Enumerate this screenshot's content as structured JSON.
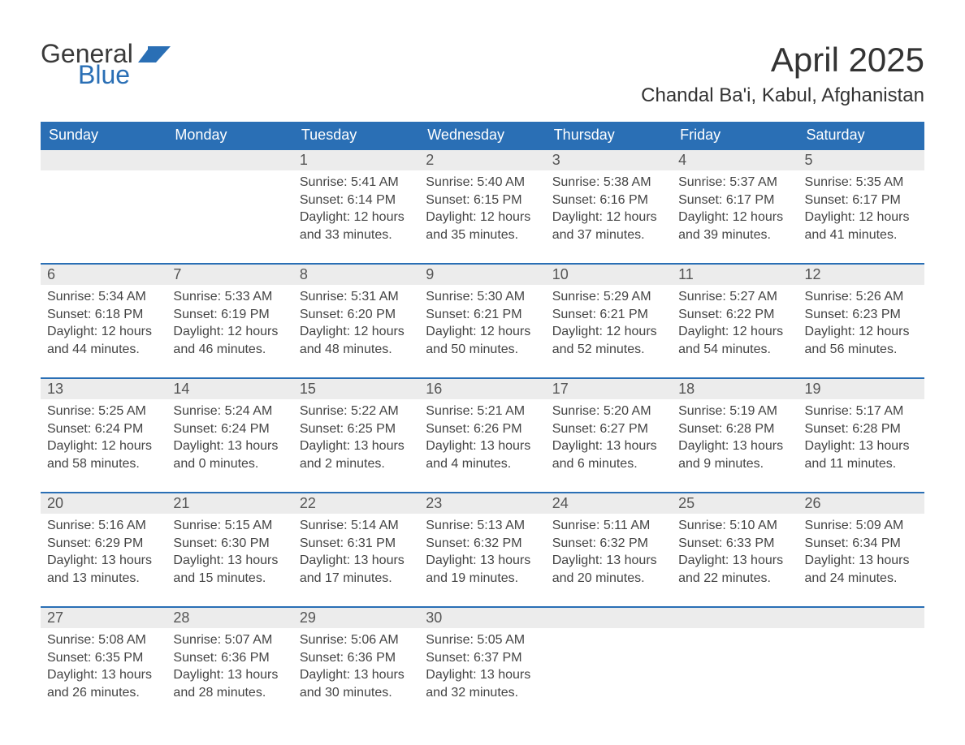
{
  "brand": {
    "word1": "General",
    "word2": "Blue",
    "flag_color": "#2a6fb5",
    "text_dark": "#3a3a3a"
  },
  "title": "April 2025",
  "location": "Chandal Ba'i, Kabul, Afghanistan",
  "colors": {
    "header_bg": "#2a6fb5",
    "header_text": "#ffffff",
    "daynum_bg": "#ececec",
    "daynum_text": "#555555",
    "body_text": "#444444",
    "rule": "#2a6fb5",
    "page_bg": "#ffffff"
  },
  "weekdays": [
    "Sunday",
    "Monday",
    "Tuesday",
    "Wednesday",
    "Thursday",
    "Friday",
    "Saturday"
  ],
  "weeks": [
    [
      {
        "n": "",
        "lines": [
          "",
          "",
          "",
          ""
        ],
        "empty": true
      },
      {
        "n": "",
        "lines": [
          "",
          "",
          "",
          ""
        ],
        "empty": true
      },
      {
        "n": "1",
        "lines": [
          "Sunrise: 5:41 AM",
          "Sunset: 6:14 PM",
          "Daylight: 12 hours",
          "and 33 minutes."
        ]
      },
      {
        "n": "2",
        "lines": [
          "Sunrise: 5:40 AM",
          "Sunset: 6:15 PM",
          "Daylight: 12 hours",
          "and 35 minutes."
        ]
      },
      {
        "n": "3",
        "lines": [
          "Sunrise: 5:38 AM",
          "Sunset: 6:16 PM",
          "Daylight: 12 hours",
          "and 37 minutes."
        ]
      },
      {
        "n": "4",
        "lines": [
          "Sunrise: 5:37 AM",
          "Sunset: 6:17 PM",
          "Daylight: 12 hours",
          "and 39 minutes."
        ]
      },
      {
        "n": "5",
        "lines": [
          "Sunrise: 5:35 AM",
          "Sunset: 6:17 PM",
          "Daylight: 12 hours",
          "and 41 minutes."
        ]
      }
    ],
    [
      {
        "n": "6",
        "lines": [
          "Sunrise: 5:34 AM",
          "Sunset: 6:18 PM",
          "Daylight: 12 hours",
          "and 44 minutes."
        ]
      },
      {
        "n": "7",
        "lines": [
          "Sunrise: 5:33 AM",
          "Sunset: 6:19 PM",
          "Daylight: 12 hours",
          "and 46 minutes."
        ]
      },
      {
        "n": "8",
        "lines": [
          "Sunrise: 5:31 AM",
          "Sunset: 6:20 PM",
          "Daylight: 12 hours",
          "and 48 minutes."
        ]
      },
      {
        "n": "9",
        "lines": [
          "Sunrise: 5:30 AM",
          "Sunset: 6:21 PM",
          "Daylight: 12 hours",
          "and 50 minutes."
        ]
      },
      {
        "n": "10",
        "lines": [
          "Sunrise: 5:29 AM",
          "Sunset: 6:21 PM",
          "Daylight: 12 hours",
          "and 52 minutes."
        ]
      },
      {
        "n": "11",
        "lines": [
          "Sunrise: 5:27 AM",
          "Sunset: 6:22 PM",
          "Daylight: 12 hours",
          "and 54 minutes."
        ]
      },
      {
        "n": "12",
        "lines": [
          "Sunrise: 5:26 AM",
          "Sunset: 6:23 PM",
          "Daylight: 12 hours",
          "and 56 minutes."
        ]
      }
    ],
    [
      {
        "n": "13",
        "lines": [
          "Sunrise: 5:25 AM",
          "Sunset: 6:24 PM",
          "Daylight: 12 hours",
          "and 58 minutes."
        ]
      },
      {
        "n": "14",
        "lines": [
          "Sunrise: 5:24 AM",
          "Sunset: 6:24 PM",
          "Daylight: 13 hours",
          "and 0 minutes."
        ]
      },
      {
        "n": "15",
        "lines": [
          "Sunrise: 5:22 AM",
          "Sunset: 6:25 PM",
          "Daylight: 13 hours",
          "and 2 minutes."
        ]
      },
      {
        "n": "16",
        "lines": [
          "Sunrise: 5:21 AM",
          "Sunset: 6:26 PM",
          "Daylight: 13 hours",
          "and 4 minutes."
        ]
      },
      {
        "n": "17",
        "lines": [
          "Sunrise: 5:20 AM",
          "Sunset: 6:27 PM",
          "Daylight: 13 hours",
          "and 6 minutes."
        ]
      },
      {
        "n": "18",
        "lines": [
          "Sunrise: 5:19 AM",
          "Sunset: 6:28 PM",
          "Daylight: 13 hours",
          "and 9 minutes."
        ]
      },
      {
        "n": "19",
        "lines": [
          "Sunrise: 5:17 AM",
          "Sunset: 6:28 PM",
          "Daylight: 13 hours",
          "and 11 minutes."
        ]
      }
    ],
    [
      {
        "n": "20",
        "lines": [
          "Sunrise: 5:16 AM",
          "Sunset: 6:29 PM",
          "Daylight: 13 hours",
          "and 13 minutes."
        ]
      },
      {
        "n": "21",
        "lines": [
          "Sunrise: 5:15 AM",
          "Sunset: 6:30 PM",
          "Daylight: 13 hours",
          "and 15 minutes."
        ]
      },
      {
        "n": "22",
        "lines": [
          "Sunrise: 5:14 AM",
          "Sunset: 6:31 PM",
          "Daylight: 13 hours",
          "and 17 minutes."
        ]
      },
      {
        "n": "23",
        "lines": [
          "Sunrise: 5:13 AM",
          "Sunset: 6:32 PM",
          "Daylight: 13 hours",
          "and 19 minutes."
        ]
      },
      {
        "n": "24",
        "lines": [
          "Sunrise: 5:11 AM",
          "Sunset: 6:32 PM",
          "Daylight: 13 hours",
          "and 20 minutes."
        ]
      },
      {
        "n": "25",
        "lines": [
          "Sunrise: 5:10 AM",
          "Sunset: 6:33 PM",
          "Daylight: 13 hours",
          "and 22 minutes."
        ]
      },
      {
        "n": "26",
        "lines": [
          "Sunrise: 5:09 AM",
          "Sunset: 6:34 PM",
          "Daylight: 13 hours",
          "and 24 minutes."
        ]
      }
    ],
    [
      {
        "n": "27",
        "lines": [
          "Sunrise: 5:08 AM",
          "Sunset: 6:35 PM",
          "Daylight: 13 hours",
          "and 26 minutes."
        ]
      },
      {
        "n": "28",
        "lines": [
          "Sunrise: 5:07 AM",
          "Sunset: 6:36 PM",
          "Daylight: 13 hours",
          "and 28 minutes."
        ]
      },
      {
        "n": "29",
        "lines": [
          "Sunrise: 5:06 AM",
          "Sunset: 6:36 PM",
          "Daylight: 13 hours",
          "and 30 minutes."
        ]
      },
      {
        "n": "30",
        "lines": [
          "Sunrise: 5:05 AM",
          "Sunset: 6:37 PM",
          "Daylight: 13 hours",
          "and 32 minutes."
        ]
      },
      {
        "n": "",
        "lines": [
          "",
          "",
          "",
          ""
        ],
        "empty": true
      },
      {
        "n": "",
        "lines": [
          "",
          "",
          "",
          ""
        ],
        "empty": true
      },
      {
        "n": "",
        "lines": [
          "",
          "",
          "",
          ""
        ],
        "empty": true
      }
    ]
  ]
}
